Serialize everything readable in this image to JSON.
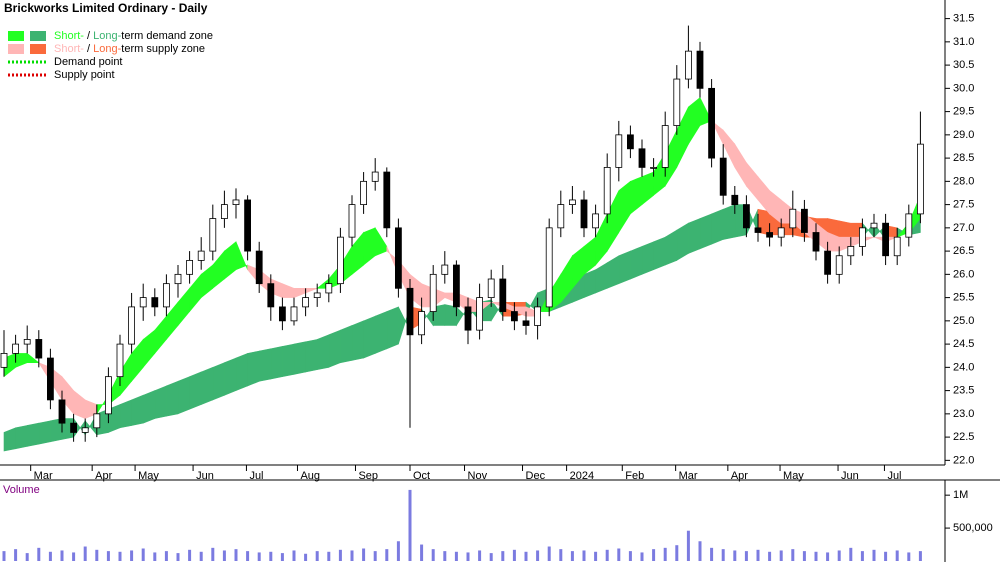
{
  "chart_data": [
    {
      "type": "candlestick",
      "title": "Brickworks Limited Ordinary - Daily",
      "legend": [
        {
          "parts": [
            "Short-",
            " / ",
            "Long-",
            "term demand zone"
          ],
          "colors": [
            "#22ff22",
            "#3cb371"
          ]
        },
        {
          "parts": [
            "Short-",
            " / ",
            "Long-",
            "term supply zone"
          ],
          "colors": [
            "#ffb6b6",
            "#fa6a3c"
          ]
        },
        {
          "name": "Demand point",
          "color": "#00dd00"
        },
        {
          "name": "Supply point",
          "color": "#dd0000"
        }
      ],
      "xticks": [
        {
          "value": 2.3,
          "label": "Mar"
        },
        {
          "value": 7.6,
          "label": "Apr"
        },
        {
          "value": 11.3,
          "label": "May"
        },
        {
          "value": 16.3,
          "label": "Jun"
        },
        {
          "value": 20.9,
          "label": "Jul"
        },
        {
          "value": 25.3,
          "label": "Aug"
        },
        {
          "value": 30.3,
          "label": "Sep"
        },
        {
          "value": 35,
          "label": "Oct"
        },
        {
          "value": 39.7,
          "label": "Nov"
        },
        {
          "value": 44.7,
          "label": "Dec"
        },
        {
          "value": 48.5,
          "label": "2024"
        },
        {
          "value": 53.3,
          "label": "Feb"
        },
        {
          "value": 57.9,
          "label": "Mar"
        },
        {
          "value": 62.4,
          "label": "Apr"
        },
        {
          "value": 66.9,
          "label": "May"
        },
        {
          "value": 71.9,
          "label": "Jun"
        },
        {
          "value": 75.9,
          "label": "Jul"
        }
      ],
      "ylim": [
        21.9,
        31.9
      ],
      "yticks": [
        {
          "value": 22,
          "label": "22.0"
        },
        22.5,
        {
          "value": 23,
          "label": "23.0"
        },
        23.5,
        {
          "value": 24,
          "label": "24.0"
        },
        24.5,
        {
          "value": 25,
          "label": "25.0"
        },
        25.5,
        {
          "value": 26,
          "label": "26.0"
        },
        26.5,
        {
          "value": 27,
          "label": "27.0"
        },
        27.5,
        {
          "value": 28,
          "label": "28.0"
        },
        28.5,
        {
          "value": 29,
          "label": "29.0"
        },
        29.5,
        {
          "value": 30,
          "label": "30.0"
        },
        30.5,
        {
          "value": 31,
          "label": "31.0"
        },
        31.5
      ],
      "open": [
        24.0,
        24.3,
        24.5,
        24.6,
        24.2,
        23.3,
        22.8,
        22.6,
        22.7,
        23.0,
        23.8,
        24.5,
        25.3,
        25.5,
        25.3,
        25.8,
        26.0,
        26.3,
        26.5,
        27.2,
        27.5,
        27.6,
        26.5,
        25.8,
        25.3,
        25.0,
        25.3,
        25.5,
        25.6,
        25.8,
        26.8,
        27.5,
        28.0,
        28.2,
        27.0,
        25.7,
        24.7,
        25.2,
        26.0,
        26.2,
        25.3,
        24.8,
        25.5,
        25.9,
        25.2,
        25.0,
        24.9,
        25.3,
        27.0,
        27.5,
        27.6,
        27.0,
        27.3,
        28.3,
        29.0,
        28.7,
        28.3,
        28.3,
        29.2,
        30.2,
        30.8,
        30.0,
        28.5,
        27.7,
        27.5,
        27.0,
        26.9,
        26.8,
        27.0,
        27.4,
        26.9,
        26.5,
        26.0,
        26.4,
        26.6,
        27.0,
        27.1,
        26.4,
        26.8,
        27.3
      ],
      "high": [
        24.8,
        24.7,
        24.9,
        24.8,
        24.4,
        23.5,
        23.0,
        22.9,
        23.2,
        24.0,
        24.7,
        25.6,
        25.8,
        25.7,
        26.0,
        26.2,
        26.5,
        26.8,
        27.5,
        27.8,
        27.85,
        27.7,
        26.7,
        26.0,
        25.5,
        25.5,
        25.7,
        25.8,
        26.0,
        27.0,
        27.7,
        28.2,
        28.5,
        28.3,
        27.2,
        25.9,
        25.5,
        26.2,
        26.5,
        26.3,
        25.5,
        25.8,
        26.1,
        26.2,
        25.4,
        25.2,
        25.5,
        27.2,
        27.8,
        27.9,
        27.8,
        27.5,
        28.6,
        29.3,
        29.2,
        28.9,
        28.5,
        29.5,
        30.5,
        31.35,
        31.0,
        30.2,
        28.8,
        27.9,
        27.7,
        27.3,
        27.1,
        27.2,
        27.8,
        27.6,
        27.1,
        26.7,
        26.6,
        26.8,
        27.2,
        27.3,
        27.3,
        27.0,
        27.5,
        29.5
      ],
      "low": [
        23.8,
        24.1,
        24.3,
        24.0,
        23.1,
        22.6,
        22.4,
        22.4,
        22.5,
        22.8,
        23.6,
        24.3,
        25.0,
        25.1,
        25.1,
        25.5,
        25.8,
        26.1,
        26.3,
        27.0,
        27.2,
        26.3,
        25.6,
        25.0,
        24.8,
        24.9,
        25.1,
        25.3,
        25.4,
        25.6,
        26.6,
        27.3,
        27.8,
        26.8,
        25.5,
        22.7,
        24.5,
        25.0,
        25.8,
        25.1,
        24.5,
        24.6,
        25.3,
        25.0,
        24.8,
        24.7,
        24.6,
        25.1,
        26.8,
        27.3,
        26.8,
        26.8,
        27.1,
        28.0,
        28.5,
        28.1,
        28.1,
        28.1,
        29.0,
        30.0,
        29.8,
        28.3,
        27.5,
        27.3,
        26.8,
        26.7,
        26.6,
        26.6,
        26.8,
        26.7,
        26.3,
        25.8,
        25.8,
        26.2,
        26.4,
        26.8,
        26.2,
        26.2,
        26.6,
        27.1
      ],
      "close": [
        24.3,
        24.5,
        24.6,
        24.2,
        23.3,
        22.8,
        22.6,
        22.7,
        23.0,
        23.8,
        24.5,
        25.3,
        25.5,
        25.3,
        25.8,
        26.0,
        26.3,
        26.5,
        27.2,
        27.5,
        27.6,
        26.5,
        25.8,
        25.3,
        25.0,
        25.3,
        25.5,
        25.6,
        25.8,
        26.8,
        27.5,
        28.0,
        28.2,
        27.0,
        25.7,
        24.7,
        25.2,
        26.0,
        26.2,
        25.3,
        24.8,
        25.5,
        25.9,
        25.2,
        25.0,
        24.9,
        25.3,
        27.0,
        27.5,
        27.6,
        27.0,
        27.3,
        28.3,
        29.0,
        28.7,
        28.3,
        28.3,
        29.2,
        30.2,
        30.8,
        30.0,
        28.5,
        27.7,
        27.5,
        27.0,
        26.9,
        26.8,
        27.0,
        27.4,
        26.9,
        26.5,
        26.0,
        26.4,
        26.6,
        27.0,
        27.1,
        26.4,
        26.8,
        27.3,
        28.8
      ],
      "short_zone": {
        "fast": [
          24.2,
          24.3,
          24.3,
          24.1,
          23.7,
          23.3,
          23.0,
          22.9,
          23.0,
          23.4,
          23.9,
          24.3,
          24.6,
          24.8,
          25.1,
          25.4,
          25.7,
          26.0,
          26.2,
          26.5,
          26.7,
          26.1,
          25.8,
          25.6,
          25.5,
          25.5,
          25.6,
          25.7,
          25.9,
          26.2,
          26.6,
          26.9,
          27.0,
          26.6,
          26.0,
          25.5,
          25.3,
          25.3,
          25.5,
          25.4,
          25.2,
          25.2,
          25.4,
          25.3,
          25.2,
          25.1,
          25.1,
          25.6,
          26.0,
          26.4,
          26.6,
          26.8,
          27.3,
          27.8,
          28.0,
          28.1,
          28.2,
          28.6,
          29.1,
          29.6,
          29.8,
          29.3,
          28.8,
          28.3,
          27.9,
          27.6,
          27.3,
          27.1,
          27.1,
          26.9,
          26.7,
          26.5,
          26.5,
          26.6,
          26.7,
          26.8,
          26.7,
          26.8,
          27.1,
          27.7
        ],
        "slow": [
          23.8,
          24.0,
          24.1,
          24.1,
          24.0,
          23.8,
          23.5,
          23.3,
          23.2,
          23.2,
          23.4,
          23.7,
          24.0,
          24.3,
          24.6,
          24.9,
          25.2,
          25.5,
          25.7,
          25.9,
          26.1,
          26.2,
          26.1,
          25.9,
          25.8,
          25.7,
          25.7,
          25.7,
          25.7,
          25.8,
          26.0,
          26.2,
          26.4,
          26.5,
          26.3,
          26.0,
          25.8,
          25.7,
          25.6,
          25.6,
          25.5,
          25.4,
          25.4,
          25.4,
          25.3,
          25.3,
          25.2,
          25.2,
          25.4,
          25.7,
          26.0,
          26.2,
          26.5,
          26.9,
          27.3,
          27.5,
          27.7,
          27.9,
          28.3,
          28.8,
          29.2,
          29.3,
          29.1,
          28.8,
          28.4,
          28.1,
          27.8,
          27.6,
          27.4,
          27.3,
          27.1,
          26.9,
          26.8,
          26.8,
          26.8,
          26.8,
          26.8,
          26.8,
          26.9,
          27.2
        ]
      },
      "long_zone": {
        "fast": [
          22.6,
          22.7,
          22.75,
          22.8,
          22.85,
          22.9,
          22.9,
          22.55,
          23.0,
          23.1,
          23.2,
          23.3,
          23.4,
          23.5,
          23.6,
          23.7,
          23.8,
          23.9,
          24.0,
          24.1,
          24.2,
          24.3,
          24.35,
          24.4,
          24.45,
          24.5,
          24.55,
          24.6,
          24.7,
          24.8,
          24.9,
          25.0,
          25.1,
          25.2,
          25.3,
          24.8,
          24.95,
          25.3,
          25.35,
          25.3,
          25.05,
          25.4,
          25.45,
          25.1,
          25.1,
          25.15,
          25.6,
          25.7,
          25.8,
          25.9,
          26.0,
          26.1,
          26.25,
          26.4,
          26.5,
          26.6,
          26.7,
          26.8,
          26.95,
          27.1,
          27.2,
          27.3,
          27.4,
          27.5,
          27.5,
          26.9,
          26.85,
          26.85,
          26.85,
          26.8,
          26.8,
          26.75,
          26.75,
          26.8,
          26.8,
          27.1,
          26.75,
          26.8,
          27.1,
          27.2
        ],
        "slow": [
          22.2,
          22.25,
          22.3,
          22.35,
          22.4,
          22.45,
          22.5,
          22.85,
          22.55,
          22.6,
          22.7,
          22.75,
          22.8,
          22.9,
          22.95,
          23.0,
          23.1,
          23.2,
          23.3,
          23.4,
          23.5,
          23.6,
          23.7,
          23.75,
          23.8,
          23.85,
          23.9,
          23.95,
          24.0,
          24.1,
          24.15,
          24.2,
          24.3,
          24.4,
          24.5,
          25.3,
          25.25,
          24.9,
          24.9,
          24.9,
          25.3,
          25.0,
          25.0,
          25.4,
          25.4,
          25.4,
          25.2,
          25.2,
          25.3,
          25.4,
          25.5,
          25.6,
          25.7,
          25.8,
          25.9,
          26.0,
          26.1,
          26.2,
          26.3,
          26.45,
          26.55,
          26.65,
          26.75,
          26.8,
          26.85,
          27.4,
          27.35,
          27.3,
          27.25,
          27.25,
          27.2,
          27.2,
          27.15,
          27.1,
          27.1,
          26.8,
          27.05,
          27.0,
          26.85,
          26.9
        ]
      }
    },
    {
      "type": "bar",
      "title": "Volume",
      "color": "#7b7be0",
      "ylim": [
        0,
        1200000
      ],
      "yticks": [
        {
          "value": 1000000,
          "label": "1M"
        },
        {
          "value": 500000,
          "label": "500,000"
        }
      ],
      "values": [
        150000,
        180000,
        120000,
        200000,
        140000,
        160000,
        130000,
        220000,
        170000,
        150000,
        140000,
        160000,
        190000,
        130000,
        150000,
        120000,
        170000,
        140000,
        200000,
        160000,
        180000,
        150000,
        130000,
        140000,
        120000,
        160000,
        110000,
        150000,
        140000,
        170000,
        160000,
        190000,
        150000,
        180000,
        300000,
        1080000,
        250000,
        180000,
        150000,
        140000,
        130000,
        160000,
        120000,
        150000,
        170000,
        140000,
        160000,
        220000,
        180000,
        150000,
        160000,
        140000,
        170000,
        190000,
        150000,
        130000,
        180000,
        200000,
        240000,
        460000,
        300000,
        200000,
        180000,
        160000,
        150000,
        170000,
        140000,
        160000,
        180000,
        150000,
        140000,
        130000,
        160000,
        200000,
        150000,
        170000,
        140000,
        160000,
        130000,
        150000
      ]
    }
  ]
}
